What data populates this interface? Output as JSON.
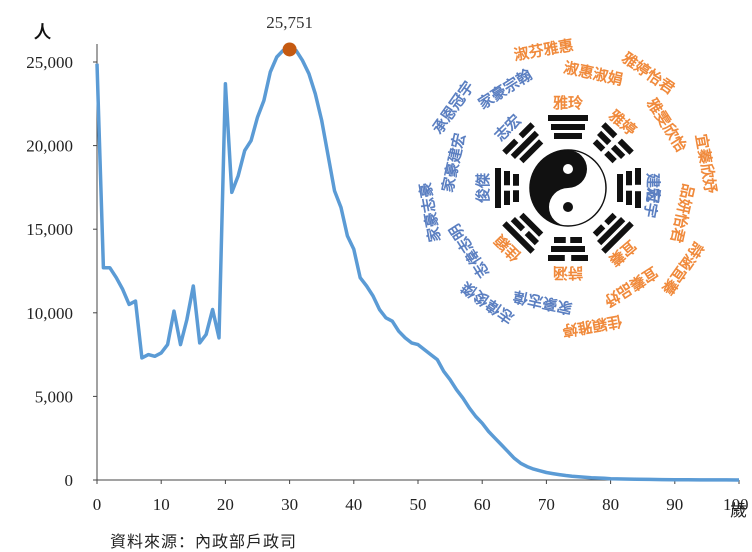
{
  "chart_data": {
    "type": "line",
    "y_unit_label": "人",
    "x_unit_label": "歲",
    "xlim": [
      0,
      100
    ],
    "ylim": [
      0,
      25000
    ],
    "x_ticks": [
      0,
      10,
      20,
      30,
      40,
      50,
      60,
      70,
      80,
      90,
      100
    ],
    "y_ticks": [
      0,
      5000,
      10000,
      15000,
      20000,
      25000
    ],
    "y_tick_labels": [
      "0",
      "5,000",
      "10,000",
      "15,000",
      "20,000",
      "25,000"
    ],
    "line_color": "#5b9bd5",
    "peak_marker_color": "#c55a11",
    "peak": {
      "x": 30,
      "y": 25751,
      "label": "25,751"
    },
    "series": [
      {
        "x": [
          0,
          1,
          2,
          3,
          4,
          5,
          6,
          7,
          8,
          9,
          10,
          11,
          12,
          13,
          14,
          15,
          16,
          17,
          18,
          19,
          20,
          21,
          22,
          23,
          24,
          25,
          26,
          27,
          28,
          29,
          30,
          31,
          32,
          33,
          34,
          35,
          36,
          37,
          38,
          39,
          40,
          41,
          42,
          43,
          44,
          45,
          46,
          47,
          48,
          49,
          50,
          51,
          52,
          53,
          54,
          55,
          56,
          57,
          58,
          59,
          60,
          61,
          62,
          63,
          64,
          65,
          66,
          67,
          68,
          69,
          70,
          71,
          72,
          73,
          74,
          75,
          76,
          77,
          78,
          79,
          80,
          82,
          84,
          86,
          88,
          90,
          92,
          94,
          96,
          98,
          100
        ],
        "y": [
          24900,
          12700,
          12700,
          12100,
          11400,
          10500,
          10700,
          7300,
          7500,
          7400,
          7600,
          8100,
          10100,
          8100,
          9600,
          11600,
          8200,
          8700,
          10200,
          8500,
          23700,
          17200,
          18200,
          19700,
          20300,
          21700,
          22700,
          24400,
          25300,
          25700,
          25751,
          25700,
          25100,
          24300,
          23100,
          21500,
          19400,
          17300,
          16300,
          14600,
          13800,
          12100,
          11600,
          11000,
          10200,
          9700,
          9500,
          8900,
          8500,
          8200,
          8100,
          7800,
          7500,
          7200,
          6500,
          6000,
          5400,
          4900,
          4300,
          3800,
          3400,
          2900,
          2500,
          2100,
          1700,
          1300,
          1000,
          800,
          650,
          550,
          450,
          380,
          320,
          270,
          230,
          200,
          170,
          140,
          120,
          100,
          80,
          60,
          45,
          35,
          25,
          18,
          12,
          8,
          5,
          3,
          2
        ]
      }
    ]
  },
  "bagua": {
    "blue_names": [
      "家豪志偉",
      "志偉俊傑",
      "志偉志明",
      "家豪志豪",
      "家豪建宏",
      "承恩冠宇",
      "家豪宗翰"
    ],
    "orange_names": [
      "淑芬雅惠",
      "淑惠淑娟",
      "雅婷怡君",
      "雅雯欣怡",
      "宜蓁欣妤",
      "品妍怡君",
      "詩涵宜蓁",
      "宜蓁品妤",
      "佳穎雅婷"
    ],
    "inner_blue": [
      "俊傑",
      "志宏",
      "建宏",
      "冠宇"
    ],
    "inner_orange": [
      "雅玲",
      "雅婷",
      "宜蓁",
      "詩涵",
      "佳穎"
    ],
    "blue_color": "#5b7fc1",
    "orange_color": "#f08a3c"
  },
  "source_text": "資料來源：內政部戶政司"
}
